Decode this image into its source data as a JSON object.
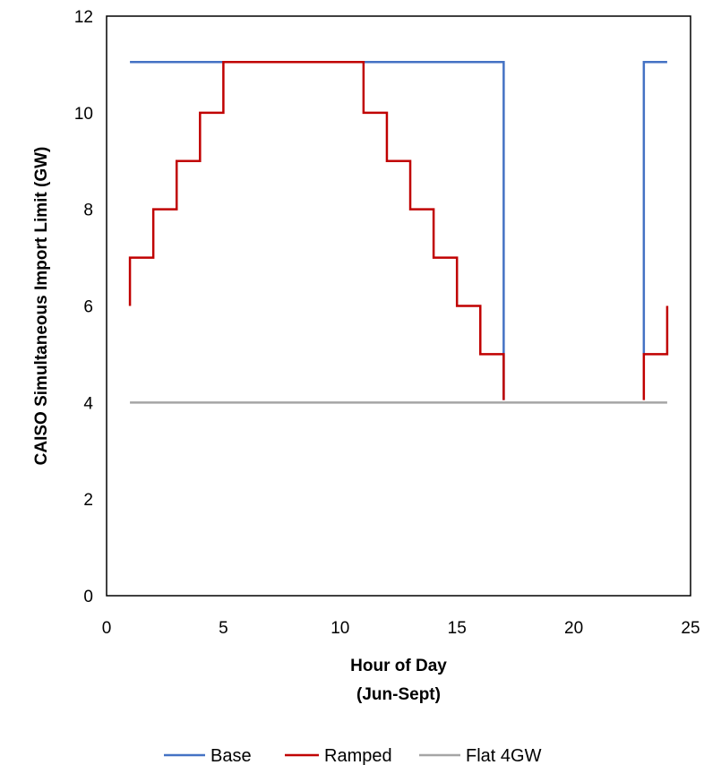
{
  "chart_data": {
    "type": "line",
    "step": true,
    "xlabel_lines": [
      "Hour of Day",
      "(Jun-Sept)"
    ],
    "ylabel": "CAISO Simultaneous Import Limit (GW)",
    "xlim": [
      0,
      25
    ],
    "ylim": [
      0,
      12
    ],
    "xticks": [
      0,
      5,
      10,
      15,
      20,
      25
    ],
    "yticks": [
      0,
      2,
      4,
      6,
      8,
      10,
      12
    ],
    "grid": false,
    "legend_position": "bottom",
    "series": [
      {
        "name": "Base",
        "color": "#4472C4",
        "points": [
          [
            1,
            11.05
          ],
          [
            17,
            11.05
          ],
          [
            17,
            5
          ],
          [
            17,
            4.05
          ]
        ],
        "segments": [
          [
            [
              1,
              11.05
            ],
            [
              17,
              11.05
            ],
            [
              17,
              4.05
            ]
          ],
          [
            [
              23,
              5
            ],
            [
              23,
              11.05
            ],
            [
              24,
              11.05
            ]
          ]
        ]
      },
      {
        "name": "Ramped",
        "color": "#C00000",
        "segments": [
          [
            [
              1,
              6
            ],
            [
              1,
              7
            ],
            [
              2,
              7
            ],
            [
              2,
              8
            ],
            [
              3,
              8
            ],
            [
              3,
              9
            ],
            [
              4,
              9
            ],
            [
              4,
              10
            ],
            [
              5,
              10
            ],
            [
              5,
              11.05
            ],
            [
              11,
              11.05
            ],
            [
              11,
              10
            ],
            [
              12,
              10
            ],
            [
              12,
              9
            ],
            [
              13,
              9
            ],
            [
              13,
              8
            ],
            [
              14,
              8
            ],
            [
              14,
              7
            ],
            [
              15,
              7
            ],
            [
              15,
              6
            ],
            [
              16,
              6
            ],
            [
              16,
              5
            ],
            [
              17,
              5
            ],
            [
              17,
              4.05
            ]
          ],
          [
            [
              23,
              4.05
            ],
            [
              23,
              5
            ],
            [
              24,
              5
            ],
            [
              24,
              6
            ]
          ]
        ]
      },
      {
        "name": "Flat 4GW",
        "color": "#A5A5A5",
        "segments": [
          [
            [
              1,
              4
            ],
            [
              24,
              4
            ]
          ]
        ]
      }
    ]
  }
}
